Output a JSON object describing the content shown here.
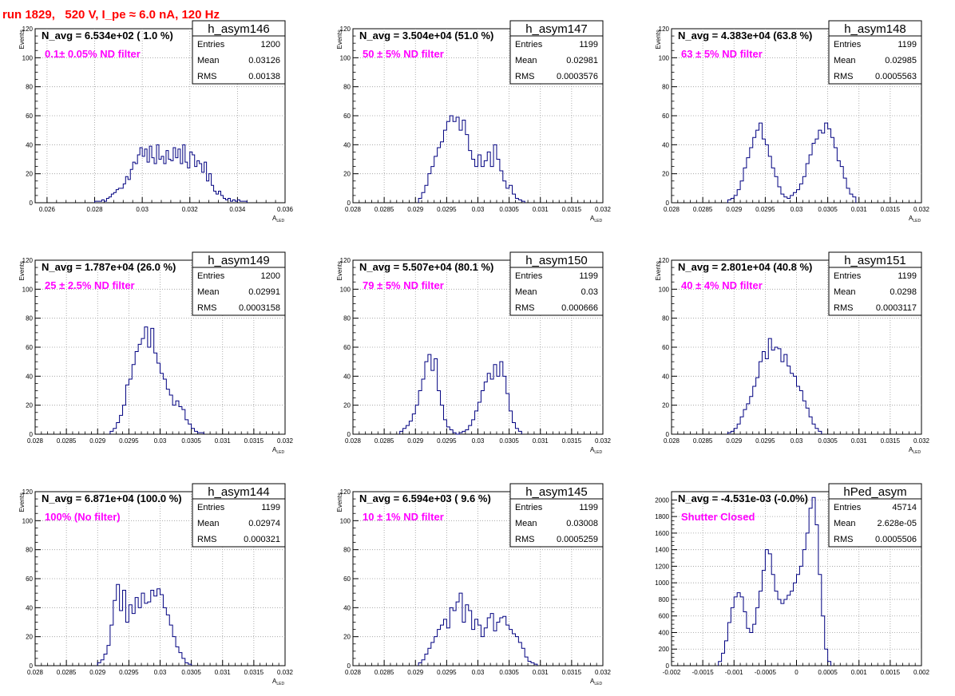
{
  "header": {
    "run_title": "run 1829,   520 V, I_pe ≈ 6.0 nA, 120 Hz"
  },
  "style": {
    "line_color": "#000080",
    "info_color": "#ff00ff",
    "title_color": "#ff0000",
    "grid": "dotted"
  },
  "stats_labels": {
    "entries": "Entries",
    "mean": "Mean",
    "rms": "RMS"
  },
  "chart_data": [
    {
      "type": "histogram",
      "name": "h_asym146",
      "navg": "N_avg = 6.534e+02 ( 1.0 %)",
      "filter": "0.1± 0.05% ND filter",
      "stats": {
        "entries": "1200",
        "mean": "0.03126",
        "rms": "0.00138"
      },
      "ylabel": "Events",
      "xlabel": "A",
      "xlabel_sub": "LED",
      "xlim": [
        0.0255,
        0.036
      ],
      "ylim": [
        0,
        120
      ],
      "xticks": [
        0.026,
        0.028,
        0.03,
        0.032,
        0.034,
        0.036
      ],
      "xtick_labels": [
        "0.026",
        "0.028",
        "0.03",
        "0.032",
        "0.034",
        "0.036"
      ],
      "yticks": [
        0,
        20,
        40,
        60,
        80,
        100,
        120
      ],
      "bins": {
        "start": 0.028,
        "width": 0.0001,
        "counts": [
          1,
          1,
          1,
          2,
          1,
          3,
          4,
          6,
          7,
          9,
          10,
          10,
          13,
          18,
          16,
          23,
          28,
          27,
          33,
          38,
          32,
          37,
          28,
          39,
          31,
          27,
          40,
          30,
          32,
          27,
          36,
          30,
          29,
          38,
          31,
          37,
          27,
          40,
          28,
          24,
          35,
          33,
          25,
          29,
          27,
          21,
          28,
          15,
          20,
          12,
          8,
          6,
          8,
          5,
          3,
          2,
          3,
          1,
          2,
          1,
          2,
          1,
          1,
          1
        ]
      }
    },
    {
      "type": "histogram",
      "name": "h_asym147",
      "navg": "N_avg = 3.504e+04 (51.0 %)",
      "filter": "50 ± 5% ND filter",
      "stats": {
        "entries": "1199",
        "mean": "0.02981",
        "rms": "0.0003576"
      },
      "ylabel": "Events",
      "xlabel": "A",
      "xlabel_sub": "LED",
      "xlim": [
        0.028,
        0.032
      ],
      "ylim": [
        0,
        120
      ],
      "xticks": [
        0.028,
        0.0285,
        0.029,
        0.0295,
        0.03,
        0.0305,
        0.031,
        0.0315,
        0.032
      ],
      "xtick_labels": [
        "0.028",
        "0.0285",
        "0.029",
        "0.0295",
        "0.03",
        "0.0305",
        "0.031",
        "0.0315",
        "0.032"
      ],
      "yticks": [
        0,
        20,
        40,
        60,
        80,
        100,
        120
      ],
      "bins": {
        "start": 0.02905,
        "width": 5e-05,
        "counts": [
          3,
          7,
          12,
          20,
          25,
          32,
          38,
          42,
          50,
          56,
          60,
          56,
          59,
          50,
          57,
          47,
          36,
          30,
          25,
          33,
          25,
          29,
          35,
          25,
          40,
          30,
          22,
          15,
          10,
          12,
          6,
          3,
          2,
          1
        ]
      }
    },
    {
      "type": "histogram",
      "name": "h_asym148",
      "navg": "N_avg = 4.383e+04 (63.8 %)",
      "filter": "63 ± 5% ND filter",
      "stats": {
        "entries": "1199",
        "mean": "0.02985",
        "rms": "0.0005563"
      },
      "ylabel": "Events",
      "xlabel": "A",
      "xlabel_sub": "LED",
      "xlim": [
        0.028,
        0.032
      ],
      "ylim": [
        0,
        120
      ],
      "xticks": [
        0.028,
        0.0285,
        0.029,
        0.0295,
        0.03,
        0.0305,
        0.031,
        0.0315,
        0.032
      ],
      "xtick_labels": [
        "0.028",
        "0.0285",
        "0.029",
        "0.0295",
        "0.03",
        "0.0305",
        "0.031",
        "0.0315",
        "0.032"
      ],
      "yticks": [
        0,
        20,
        40,
        60,
        80,
        100,
        120
      ],
      "bins": {
        "start": 0.0289,
        "width": 5e-05,
        "counts": [
          2,
          3,
          5,
          9,
          15,
          24,
          31,
          38,
          45,
          50,
          55,
          44,
          40,
          32,
          24,
          18,
          11,
          6,
          4,
          3,
          5,
          7,
          9,
          13,
          18,
          27,
          33,
          41,
          44,
          50,
          48,
          55,
          51,
          45,
          38,
          29,
          25,
          17,
          10,
          6,
          4
        ]
      }
    },
    {
      "type": "histogram",
      "name": "h_asym149",
      "navg": "N_avg = 1.787e+04 (26.0 %)",
      "filter": "25 ± 2.5% ND filter",
      "stats": {
        "entries": "1200",
        "mean": "0.02991",
        "rms": "0.0003158"
      },
      "ylabel": "Events",
      "xlabel": "A",
      "xlabel_sub": "LED",
      "xlim": [
        0.028,
        0.032
      ],
      "ylim": [
        0,
        120
      ],
      "xticks": [
        0.028,
        0.0285,
        0.029,
        0.0295,
        0.03,
        0.0305,
        0.031,
        0.0315,
        0.032
      ],
      "xtick_labels": [
        "0.028",
        "0.0285",
        "0.029",
        "0.0295",
        "0.03",
        "0.0305",
        "0.031",
        "0.0315",
        "0.032"
      ],
      "yticks": [
        0,
        20,
        40,
        60,
        80,
        100,
        120
      ],
      "bins": {
        "start": 0.0292,
        "width": 5e-05,
        "counts": [
          2,
          4,
          8,
          13,
          20,
          34,
          38,
          48,
          57,
          62,
          66,
          74,
          60,
          73,
          56,
          49,
          42,
          38,
          31,
          27,
          20,
          23,
          19,
          17,
          10,
          7,
          4,
          2,
          1,
          1
        ]
      }
    },
    {
      "type": "histogram",
      "name": "h_asym150",
      "navg": "N_avg = 5.507e+04 (80.1 %)",
      "filter": "79 ± 5% ND filter",
      "stats": {
        "entries": "1199",
        "mean": "0.03",
        "rms": "0.000666"
      },
      "ylabel": "Events",
      "xlabel": "A",
      "xlabel_sub": "LED",
      "xlim": [
        0.028,
        0.032
      ],
      "ylim": [
        0,
        120
      ],
      "xticks": [
        0.028,
        0.0285,
        0.029,
        0.0295,
        0.03,
        0.0305,
        0.031,
        0.0315,
        0.032
      ],
      "xtick_labels": [
        "0.028",
        "0.0285",
        "0.029",
        "0.0295",
        "0.03",
        "0.0305",
        "0.031",
        "0.0315",
        "0.032"
      ],
      "yticks": [
        0,
        20,
        40,
        60,
        80,
        100,
        120
      ],
      "bins": {
        "start": 0.02875,
        "width": 5e-05,
        "counts": [
          2,
          4,
          6,
          9,
          14,
          20,
          30,
          38,
          50,
          55,
          44,
          52,
          30,
          20,
          10,
          5,
          3,
          1,
          0,
          1,
          2,
          3,
          6,
          10,
          16,
          22,
          30,
          36,
          42,
          38,
          48,
          40,
          50,
          40,
          28,
          16,
          8,
          4,
          2
        ]
      }
    },
    {
      "type": "histogram",
      "name": "h_asym151",
      "navg": "N_avg = 2.801e+04 (40.8 %)",
      "filter": "40 ± 4% ND filter",
      "stats": {
        "entries": "1199",
        "mean": "0.0298",
        "rms": "0.0003117"
      },
      "ylabel": "Events",
      "xlabel": "A",
      "xlabel_sub": "LED",
      "xlim": [
        0.028,
        0.032
      ],
      "ylim": [
        0,
        120
      ],
      "xticks": [
        0.028,
        0.0285,
        0.029,
        0.0295,
        0.03,
        0.0305,
        0.031,
        0.0315,
        0.032
      ],
      "xtick_labels": [
        "0.028",
        "0.0285",
        "0.029",
        "0.0295",
        "0.03",
        "0.0305",
        "0.031",
        "0.0315",
        "0.032"
      ],
      "yticks": [
        0,
        20,
        40,
        60,
        80,
        100,
        120
      ],
      "bins": {
        "start": 0.0289,
        "width": 5e-05,
        "counts": [
          1,
          2,
          4,
          7,
          12,
          17,
          21,
          26,
          33,
          39,
          50,
          57,
          52,
          66,
          58,
          60,
          59,
          50,
          55,
          47,
          42,
          40,
          33,
          30,
          23,
          18,
          12,
          7,
          4,
          2
        ]
      }
    },
    {
      "type": "histogram",
      "name": "h_asym144",
      "navg": "N_avg = 6.871e+04 (100.0 %)",
      "filter": "100% (No filter)",
      "stats": {
        "entries": "1199",
        "mean": "0.02974",
        "rms": "0.000321"
      },
      "ylabel": "Events",
      "xlabel": "A",
      "xlabel_sub": "LED",
      "xlim": [
        0.028,
        0.032
      ],
      "ylim": [
        0,
        120
      ],
      "xticks": [
        0.028,
        0.0285,
        0.029,
        0.0295,
        0.03,
        0.0305,
        0.031,
        0.0315,
        0.032
      ],
      "xtick_labels": [
        "0.028",
        "0.0285",
        "0.029",
        "0.0295",
        "0.03",
        "0.0305",
        "0.031",
        "0.0315",
        "0.032"
      ],
      "yticks": [
        0,
        20,
        40,
        60,
        80,
        100,
        120
      ],
      "bins": {
        "start": 0.029,
        "width": 5e-05,
        "counts": [
          2,
          4,
          8,
          14,
          28,
          45,
          56,
          38,
          52,
          30,
          42,
          36,
          47,
          40,
          50,
          43,
          44,
          52,
          48,
          53,
          49,
          40,
          35,
          28,
          20,
          13,
          9,
          5,
          2,
          1
        ]
      }
    },
    {
      "type": "histogram",
      "name": "h_asym145",
      "navg": "N_avg = 6.594e+03 ( 9.6 %)",
      "filter": "10 ± 1% ND filter",
      "stats": {
        "entries": "1199",
        "mean": "0.03008",
        "rms": "0.0005259"
      },
      "ylabel": "Events",
      "xlabel": "A",
      "xlabel_sub": "LED",
      "xlim": [
        0.028,
        0.032
      ],
      "ylim": [
        0,
        120
      ],
      "xticks": [
        0.028,
        0.0285,
        0.029,
        0.0295,
        0.03,
        0.0305,
        0.031,
        0.0315,
        0.032
      ],
      "xtick_labels": [
        "0.028",
        "0.0285",
        "0.029",
        "0.0295",
        "0.03",
        "0.0305",
        "0.031",
        "0.0315",
        "0.032"
      ],
      "yticks": [
        0,
        20,
        40,
        60,
        80,
        100,
        120
      ],
      "bins": {
        "start": 0.02905,
        "width": 5e-05,
        "counts": [
          2,
          4,
          8,
          12,
          16,
          20,
          25,
          28,
          32,
          26,
          40,
          38,
          44,
          50,
          30,
          42,
          38,
          25,
          32,
          28,
          20,
          26,
          33,
          36,
          24,
          30,
          33,
          34,
          28,
          25,
          22,
          20,
          16,
          12,
          6,
          3,
          2,
          1
        ]
      }
    },
    {
      "type": "histogram",
      "name": "hPed_asym",
      "navg": "N_avg = -4.531e-03 (-0.0%)",
      "filter": "Shutter Closed",
      "stats": {
        "entries": "45714",
        "mean": "2.628e-05",
        "rms": "0.0005506"
      },
      "ylabel": "",
      "xlabel": "",
      "xlabel_sub": "",
      "xlim": [
        -0.002,
        0.002
      ],
      "ylim": [
        0,
        2100
      ],
      "xticks": [
        -0.002,
        -0.0015,
        -0.001,
        -0.0005,
        0,
        0.0005,
        0.001,
        0.0015,
        0.002
      ],
      "xtick_labels": [
        "-0.002",
        "-0.0015",
        "-0.001",
        "-0.0005",
        "0",
        "0.0005",
        "0.001",
        "0.0015",
        "0.002"
      ],
      "yticks": [
        0,
        200,
        400,
        600,
        800,
        1000,
        1200,
        1400,
        1600,
        1800,
        2000
      ],
      "bins": {
        "start": -0.00125,
        "width": 5e-05,
        "counts": [
          50,
          150,
          300,
          520,
          700,
          830,
          880,
          830,
          650,
          450,
          400,
          500,
          700,
          900,
          1150,
          1400,
          1350,
          1100,
          900,
          800,
          750,
          800,
          850,
          900,
          1000,
          1100,
          1200,
          1400,
          1600,
          1900,
          2030,
          1700,
          1100,
          600,
          200,
          50
        ]
      }
    }
  ]
}
